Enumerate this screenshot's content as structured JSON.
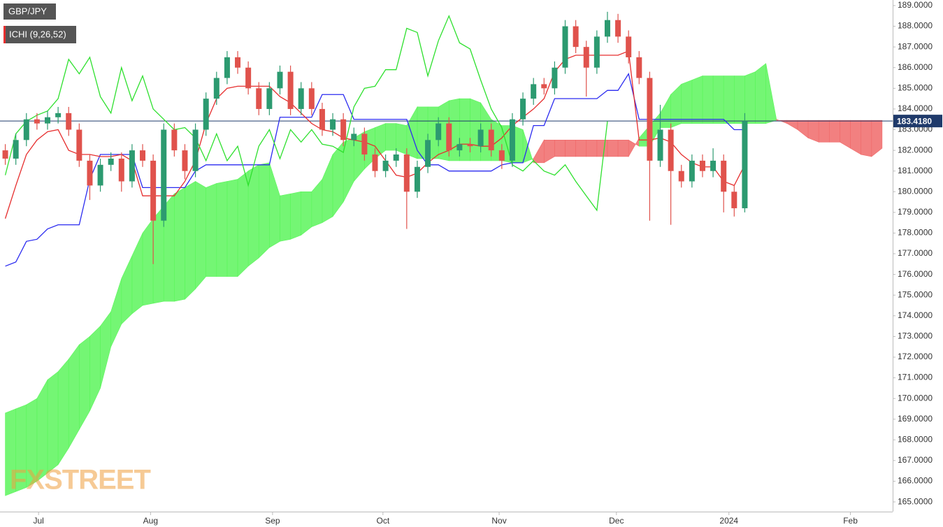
{
  "chart_data": {
    "type": "candlestick",
    "symbol": "GBP/JPY",
    "indicator": "ICHI (9,26,52)",
    "watermark": "FXSTREET",
    "ylim": [
      164.53,
      189.27
    ],
    "yticks": [
      {
        "value": 165,
        "label": "165.0000"
      },
      {
        "value": 166,
        "label": "166.0000"
      },
      {
        "value": 167,
        "label": "167.0000"
      },
      {
        "value": 168,
        "label": "168.0000"
      },
      {
        "value": 169,
        "label": "169.0000"
      },
      {
        "value": 170,
        "label": "170.0000"
      },
      {
        "value": 171,
        "label": "171.0000"
      },
      {
        "value": 172,
        "label": "172.0000"
      },
      {
        "value": 173,
        "label": "173.0000"
      },
      {
        "value": 174,
        "label": "174.0000"
      },
      {
        "value": 175,
        "label": "175.0000"
      },
      {
        "value": 176,
        "label": "176.0000"
      },
      {
        "value": 177,
        "label": "177.0000"
      },
      {
        "value": 178,
        "label": "178.0000"
      },
      {
        "value": 179,
        "label": "179.0000"
      },
      {
        "value": 180,
        "label": "180.0000"
      },
      {
        "value": 181,
        "label": "181.0000"
      },
      {
        "value": 182,
        "label": "182.0000"
      },
      {
        "value": 183,
        "label": "183.0000"
      },
      {
        "value": 184,
        "label": "184.0000"
      },
      {
        "value": 185,
        "label": "185.0000"
      },
      {
        "value": 186,
        "label": "186.0000"
      },
      {
        "value": 187,
        "label": "187.0000"
      },
      {
        "value": 188,
        "label": "188.0000"
      },
      {
        "value": 189,
        "label": "189.0000"
      }
    ],
    "xlim": [
      -1,
      168
    ],
    "xticks": [
      {
        "value": 6.3,
        "label": "Jul"
      },
      {
        "value": 27.5,
        "label": "Aug"
      },
      {
        "value": 50.6,
        "label": "Sep"
      },
      {
        "value": 71.5,
        "label": "Oct"
      },
      {
        "value": 93.5,
        "label": "Nov"
      },
      {
        "value": 115.7,
        "label": "Dec"
      },
      {
        "value": 137,
        "label": "2024"
      },
      {
        "value": 160,
        "label": "Feb"
      }
    ],
    "price_line": {
      "value": 183.418,
      "label": "183.4180",
      "color": "#1f3a6b"
    },
    "x": [
      0,
      2,
      4,
      6,
      8,
      10,
      12,
      14,
      16,
      18,
      20,
      22,
      24,
      26,
      28,
      30,
      32,
      34,
      36,
      38,
      40,
      42,
      44,
      46,
      48,
      50,
      52,
      54,
      56,
      58,
      60,
      62,
      64,
      66,
      68,
      70,
      72,
      74,
      76,
      78,
      80,
      82,
      84,
      86,
      88,
      90,
      92,
      94,
      96,
      98,
      100,
      102,
      104,
      106,
      108,
      110,
      112,
      114,
      116,
      118,
      120,
      122,
      124,
      126,
      128,
      130,
      132,
      134,
      136,
      138,
      140,
      142,
      144,
      146,
      148,
      150,
      152,
      154,
      156,
      158,
      160,
      162,
      164,
      166
    ],
    "candles": {
      "up_color": "#2c9a70",
      "down_color": "#e0524c",
      "open": [
        182.0,
        181.6,
        182.5,
        183.5,
        183.3,
        183.6,
        183.8,
        183.0,
        181.5,
        180.3,
        181.3,
        181.6,
        180.5,
        182.0,
        181.5,
        178.6,
        183.0,
        182.0,
        181.0,
        183.0,
        184.5,
        185.5,
        186.5,
        186.0,
        185.0,
        184.0,
        185.0,
        185.8,
        184.0,
        185.0,
        184.0,
        183.0,
        183.5,
        182.5,
        182.8,
        181.8,
        181.0,
        181.5,
        181.8,
        180.0,
        181.2,
        182.5,
        183.3,
        182.0,
        182.3,
        182.2,
        183.0,
        182.0,
        181.5,
        183.5,
        184.5,
        185.2,
        185.0,
        186.0,
        188.0,
        187.0,
        186.0,
        187.5,
        188.3,
        187.5,
        186.5,
        185.5,
        181.5,
        183.0,
        181.0,
        180.5,
        181.5,
        181.0,
        181.5,
        180.0,
        179.2,
        null,
        null,
        null,
        null,
        null,
        null,
        null,
        null,
        null,
        null,
        null,
        null,
        null
      ],
      "high": [
        182.3,
        182.8,
        183.8,
        183.8,
        183.9,
        184.1,
        184.1,
        183.3,
        181.8,
        181.6,
        181.9,
        181.9,
        182.3,
        182.3,
        181.8,
        183.3,
        183.3,
        182.3,
        183.3,
        184.8,
        185.8,
        186.8,
        186.8,
        186.3,
        185.3,
        185.3,
        186.1,
        186.1,
        185.3,
        185.3,
        184.3,
        183.8,
        183.8,
        183.1,
        183.1,
        182.1,
        181.8,
        182.1,
        182.1,
        181.5,
        182.8,
        183.6,
        183.6,
        182.6,
        182.6,
        183.3,
        183.3,
        182.3,
        183.8,
        184.8,
        185.5,
        185.5,
        186.3,
        188.3,
        188.3,
        187.3,
        187.8,
        188.7,
        188.6,
        187.8,
        186.8,
        185.8,
        184.2,
        183.3,
        181.3,
        181.8,
        181.8,
        182.1,
        181.8,
        180.3,
        183.8,
        null,
        null,
        null,
        null,
        null,
        null,
        null,
        null,
        null,
        null,
        null,
        null,
        null
      ],
      "low": [
        181.3,
        181.3,
        182.2,
        183.0,
        183.0,
        183.3,
        182.7,
        181.2,
        179.6,
        180.0,
        181.0,
        180.0,
        180.2,
        181.2,
        176.5,
        178.3,
        181.7,
        180.6,
        180.7,
        182.7,
        184.2,
        185.2,
        185.7,
        184.7,
        183.7,
        183.7,
        184.7,
        183.7,
        183.7,
        183.7,
        182.7,
        182.7,
        182.2,
        182.2,
        181.5,
        180.7,
        180.7,
        181.2,
        178.2,
        179.7,
        180.9,
        182.2,
        181.7,
        181.7,
        181.9,
        181.9,
        181.7,
        181.1,
        181.2,
        183.2,
        184.2,
        184.7,
        184.7,
        185.7,
        186.7,
        184.6,
        185.7,
        187.2,
        187.2,
        186.2,
        185.2,
        178.6,
        181.2,
        178.4,
        180.2,
        180.2,
        180.7,
        180.7,
        179.0,
        178.8,
        179.0,
        null,
        null,
        null,
        null,
        null,
        null,
        null,
        null,
        null,
        null,
        null,
        null,
        null
      ],
      "close": [
        181.6,
        182.5,
        183.5,
        183.3,
        183.6,
        183.8,
        183.0,
        181.5,
        180.3,
        181.3,
        181.6,
        180.5,
        182.0,
        181.5,
        178.6,
        183.0,
        182.0,
        181.0,
        183.0,
        184.5,
        185.5,
        186.5,
        186.0,
        185.0,
        184.0,
        185.0,
        185.8,
        184.0,
        185.0,
        184.0,
        183.0,
        183.5,
        182.5,
        182.8,
        181.8,
        181.0,
        181.5,
        181.8,
        180.0,
        181.2,
        182.5,
        183.3,
        182.0,
        182.3,
        182.2,
        183.0,
        182.0,
        181.5,
        183.5,
        184.5,
        185.2,
        185.0,
        186.0,
        188.0,
        187.0,
        186.0,
        187.5,
        188.3,
        187.5,
        186.5,
        185.5,
        181.5,
        183.0,
        181.0,
        180.5,
        181.5,
        181.0,
        181.5,
        180.0,
        179.2,
        183.418,
        null,
        null,
        null,
        null,
        null,
        null,
        null,
        null,
        null,
        null,
        null,
        null,
        null
      ]
    },
    "cloud": {
      "up_color": "#5cf55c",
      "down_color": "#f06a6a",
      "span_a": [
        169.3,
        169.5,
        169.7,
        170.0,
        170.9,
        171.3,
        171.9,
        172.6,
        173.0,
        173.5,
        174.2,
        175.8,
        176.9,
        178.0,
        178.7,
        179.3,
        179.9,
        180.2,
        180.5,
        180.2,
        180.4,
        180.5,
        180.6,
        181.0,
        181.3,
        181.4,
        179.8,
        179.9,
        180.0,
        180.0,
        180.6,
        181.8,
        182.4,
        182.6,
        182.9,
        183.1,
        183.3,
        183.3,
        183.2,
        184.1,
        184.1,
        184.1,
        184.4,
        184.5,
        184.5,
        184.3,
        183.5,
        183.2,
        183.2,
        183.0,
        181.4,
        181.4,
        181.7,
        181.7,
        181.7,
        181.7,
        181.7,
        181.7,
        181.7,
        181.7,
        182.6,
        183.2,
        183.8,
        184.7,
        185.2,
        185.4,
        185.6,
        185.6,
        185.6,
        185.6,
        185.6,
        185.8,
        186.2,
        183.5,
        183.3,
        183.0,
        182.6,
        182.4,
        182.4,
        182.4,
        182.1,
        181.8,
        181.7,
        182.1
      ],
      "span_b": [
        165.3,
        165.5,
        165.7,
        166.0,
        166.4,
        166.8,
        167.6,
        168.5,
        169.4,
        170.5,
        172.5,
        173.6,
        174.1,
        174.5,
        174.6,
        174.7,
        174.7,
        174.8,
        175.3,
        175.9,
        175.9,
        175.9,
        175.9,
        176.4,
        176.8,
        177.3,
        177.6,
        177.7,
        177.9,
        178.3,
        178.5,
        178.8,
        179.5,
        180.5,
        181.1,
        181.6,
        182.0,
        182.0,
        181.8,
        181.6,
        181.6,
        181.6,
        181.5,
        181.5,
        181.5,
        181.5,
        181.5,
        181.5,
        181.4,
        181.4,
        181.6,
        182.5,
        182.5,
        182.5,
        182.5,
        182.5,
        182.5,
        182.5,
        182.5,
        182.5,
        182.2,
        182.2,
        183.1,
        183.1,
        183.3,
        183.3,
        183.3,
        183.3,
        183.3,
        183.3,
        183.3,
        183.3,
        183.3,
        183.45,
        183.45,
        183.45,
        183.45,
        183.45,
        183.45,
        183.45,
        183.45,
        183.45,
        183.45,
        183.45
      ]
    },
    "lines": [
      {
        "color": "#2b2bf0",
        "values": [
          176.4,
          176.6,
          177.6,
          177.7,
          178.2,
          178.4,
          178.4,
          178.4,
          180.6,
          181.8,
          181.8,
          181.8,
          181.8,
          180.2,
          180.2,
          180.2,
          180.2,
          180.2,
          181.0,
          181.3,
          181.3,
          181.3,
          181.3,
          181.3,
          181.3,
          181.3,
          183.6,
          183.6,
          183.6,
          183.6,
          184.7,
          184.7,
          184.7,
          183.5,
          183.5,
          183.5,
          183.5,
          183.5,
          183.5,
          182.0,
          181.3,
          181.3,
          181.0,
          181.0,
          181.0,
          181.0,
          181.0,
          181.3,
          181.4,
          181.4,
          183.2,
          183.2,
          184.5,
          184.5,
          184.5,
          184.5,
          184.5,
          184.9,
          184.9,
          185.7,
          183.5,
          183.5,
          183.5,
          183.5,
          183.5,
          183.5,
          183.5,
          183.5,
          183.5,
          183.0,
          183.0,
          null,
          null,
          null,
          null,
          null,
          null,
          null,
          null,
          null,
          null,
          null,
          null,
          null
        ]
      },
      {
        "color": "#e62e2e",
        "values": [
          178.7,
          180.3,
          181.8,
          182.5,
          182.9,
          183.0,
          182.0,
          181.8,
          181.8,
          181.7,
          181.7,
          181.8,
          181.5,
          179.8,
          179.8,
          179.8,
          179.8,
          180.5,
          181.5,
          183.3,
          184.5,
          185.0,
          185.1,
          185.1,
          185.1,
          185.1,
          184.6,
          184.3,
          183.8,
          183.3,
          183.0,
          182.9,
          182.6,
          182.5,
          182.4,
          182.2,
          181.5,
          180.8,
          180.7,
          180.9,
          181.4,
          181.8,
          182.0,
          182.3,
          182.3,
          182.2,
          182.2,
          182.6,
          183.2,
          183.6,
          184.0,
          184.5,
          185.8,
          186.4,
          186.6,
          186.6,
          186.6,
          186.6,
          186.6,
          186.8,
          182.5,
          182.5,
          182.6,
          182.4,
          181.8,
          181.4,
          181.2,
          181.2,
          180.5,
          180.3,
          181.3,
          null,
          null,
          null,
          null,
          null,
          null,
          null,
          null,
          null,
          null,
          null,
          null,
          null
        ]
      },
      {
        "color": "#2ee02e",
        "values": [
          180.8,
          182.8,
          183.4,
          183.7,
          183.9,
          184.5,
          186.4,
          185.7,
          186.5,
          184.6,
          183.8,
          186.0,
          184.4,
          185.6,
          184.0,
          183.5,
          183.0,
          183.1,
          182.6,
          181.5,
          182.8,
          181.5,
          182.2,
          180.3,
          182.2,
          183.0,
          181.6,
          183.0,
          182.4,
          183.0,
          182.3,
          182.2,
          181.9,
          184.1,
          185.0,
          185.1,
          185.9,
          185.9,
          187.9,
          187.7,
          185.6,
          187.3,
          188.5,
          187.2,
          186.9,
          185.4,
          184.0,
          183.1,
          181.3,
          181.0,
          181.5,
          181.0,
          180.8,
          181.3,
          180.5,
          179.8,
          179.1,
          183.4,
          null,
          null,
          null,
          null,
          null,
          null,
          null,
          null,
          null,
          null,
          null,
          null,
          null,
          null,
          null,
          null,
          null,
          null,
          null,
          null,
          null,
          null,
          null,
          null,
          null,
          null
        ]
      }
    ]
  }
}
